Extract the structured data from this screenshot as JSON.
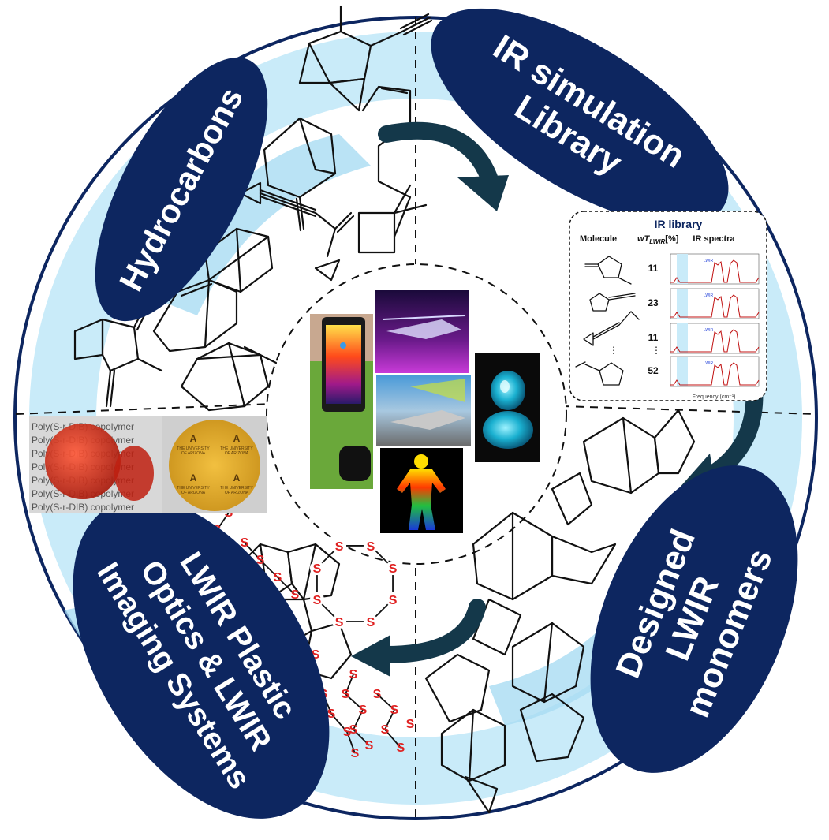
{
  "sections": {
    "hydrocarbons": {
      "label": "Hydrocarbons"
    },
    "ir_library": {
      "line1": "IR simulation",
      "line2": "Library"
    },
    "designed_monomers": {
      "line1": "Designed",
      "line2": "LWIR",
      "line3": "monomers"
    },
    "lwir_optics": {
      "line1": "LWIR Plastic",
      "line2": "Optics & LWIR",
      "line3": "Imaging Systems"
    }
  },
  "ir_library_panel": {
    "title": "IR library",
    "col_molecule": "Molecule",
    "col_wt": "wT",
    "col_wt_sub": "LWIR",
    "col_wt_unit": "[%]",
    "col_spectra": "IR spectra",
    "rows": [
      {
        "value": "11",
        "tag": "LWIR"
      },
      {
        "value": "23",
        "tag": "LWIR"
      },
      {
        "value": "11",
        "tag": "LWIR"
      },
      {
        "value": "52",
        "tag": "LWIR"
      }
    ],
    "xaxis_label": "Frequency (cm⁻¹)"
  },
  "sulfur_label": "S",
  "wafer_labels": [
    "THE UNIVERSITY",
    "OF ARIZONA"
  ],
  "sample_text": "Poly(S-r-DIB) copolymer",
  "colors": {
    "navy": "#0d2660",
    "light_blue": "#c9ebf9",
    "ring_blue": "#a9dcf2",
    "arrow": "#14384a",
    "sulfur_red": "#e02020"
  }
}
